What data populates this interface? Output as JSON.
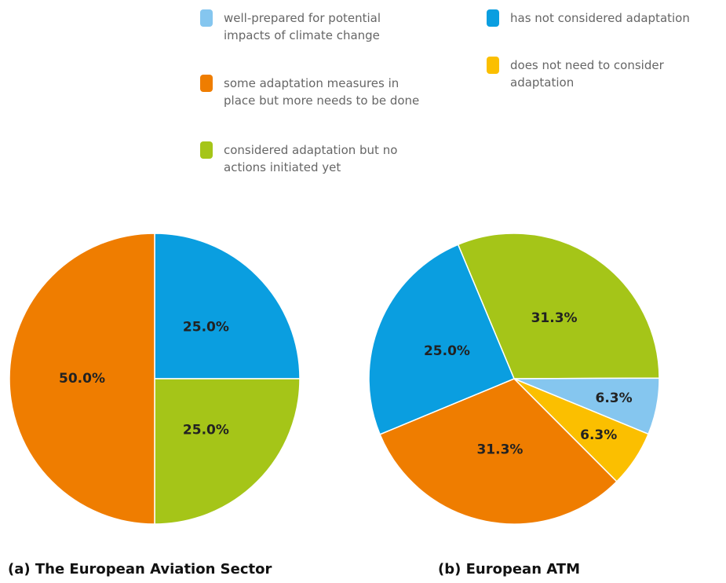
{
  "chart_data": [
    {
      "type": "pie",
      "title": "(a) The European Aviation Sector",
      "categories": [
        "has not considered adaptation",
        "considered adaptation but no actions initiated yet",
        "some adaptation measures in place but more needs to be done"
      ],
      "values": [
        25.0,
        25.0,
        50.0
      ],
      "value_labels": [
        "25.0%",
        "25.0%",
        "50.0%"
      ],
      "colors": [
        "#0a9ee0",
        "#a5c518",
        "#ef7d00"
      ]
    },
    {
      "type": "pie",
      "title": "(b) European ATM",
      "categories": [
        "considered adaptation but no actions initiated yet",
        "well-prepared for potential impacts of climate change",
        "does not need to consider adaptation",
        "some adaptation measures in place but more needs to be done",
        "has not considered adaptation"
      ],
      "values": [
        31.3,
        6.3,
        6.3,
        31.3,
        25.0
      ],
      "value_labels": [
        "31.3%",
        "6.3%",
        "6.3%",
        "31.3%",
        "25.0%"
      ],
      "colors": [
        "#a5c518",
        "#85c6ef",
        "#fbbf00",
        "#ef7d00",
        "#0a9ee0"
      ]
    }
  ]
}
